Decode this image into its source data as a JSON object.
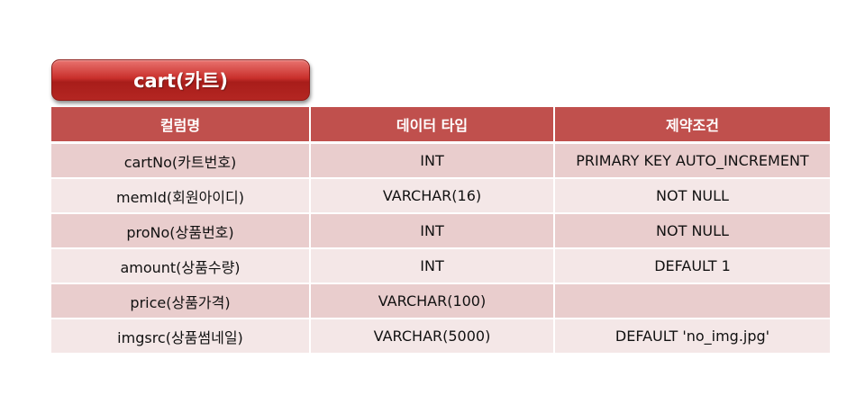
{
  "title": "cart(카트)",
  "table": {
    "headers": [
      "컬럼명",
      "데이터 타입",
      "제약조건"
    ],
    "rows": [
      [
        "cartNo(카트번호)",
        "INT",
        "PRIMARY KEY AUTO_INCREMENT"
      ],
      [
        "memId(회원아이디)",
        "VARCHAR(16)",
        "NOT NULL"
      ],
      [
        "proNo(상품번호)",
        "INT",
        "NOT NULL"
      ],
      [
        "amount(상품수량)",
        "INT",
        "DEFAULT 1"
      ],
      [
        "price(상품가격)",
        "VARCHAR(100)",
        ""
      ],
      [
        "imgsrc(상품썸네일)",
        "VARCHAR(5000)",
        "DEFAULT 'no_img.jpg'"
      ]
    ]
  },
  "colors": {
    "header_bg": "#c0504d",
    "row_odd": "#e9cdcd",
    "row_even": "#f4e7e7",
    "badge": "#c9302c"
  }
}
